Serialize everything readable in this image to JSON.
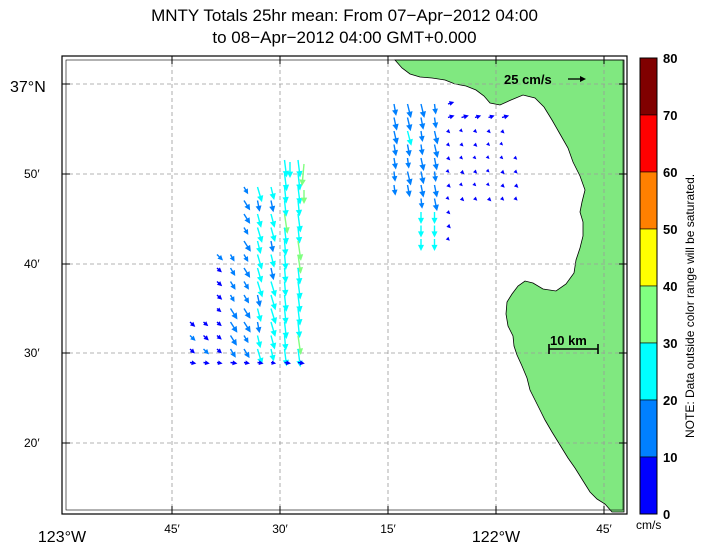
{
  "title": {
    "line1": "MNTY Totals 25hr mean: From 07−Apr−2012 04:00",
    "line2": "to 08−Apr−2012 04:00 GMT+0.000"
  },
  "map": {
    "lat_labels": [
      "37°N",
      "50′",
      "40′",
      "30′",
      "20′"
    ],
    "lon_labels": [
      "123°W",
      "45′",
      "30′",
      "15′",
      "122°W",
      "45′"
    ],
    "reference_vector_label": "25 cm/s",
    "scale_bar_label": "10 km",
    "land_color": "#80e880",
    "ocean_color": "#ffffff"
  },
  "colorbar": {
    "ticks": [
      "80",
      "70",
      "60",
      "50",
      "40",
      "30",
      "20",
      "10",
      "0"
    ],
    "unit": "cm/s",
    "note": "NOTE: Data outside color range will be saturated.",
    "bands": [
      {
        "min": 70,
        "max": 80,
        "color": "#800000"
      },
      {
        "min": 60,
        "max": 70,
        "color": "#ff0000"
      },
      {
        "min": 50,
        "max": 60,
        "color": "#ff8000"
      },
      {
        "min": 40,
        "max": 50,
        "color": "#ffff00"
      },
      {
        "min": 30,
        "max": 40,
        "color": "#80ff80"
      },
      {
        "min": 20,
        "max": 30,
        "color": "#00ffff"
      },
      {
        "min": 10,
        "max": 20,
        "color": "#0080ff"
      },
      {
        "min": 0,
        "max": 10,
        "color": "#0000ff"
      }
    ]
  }
}
